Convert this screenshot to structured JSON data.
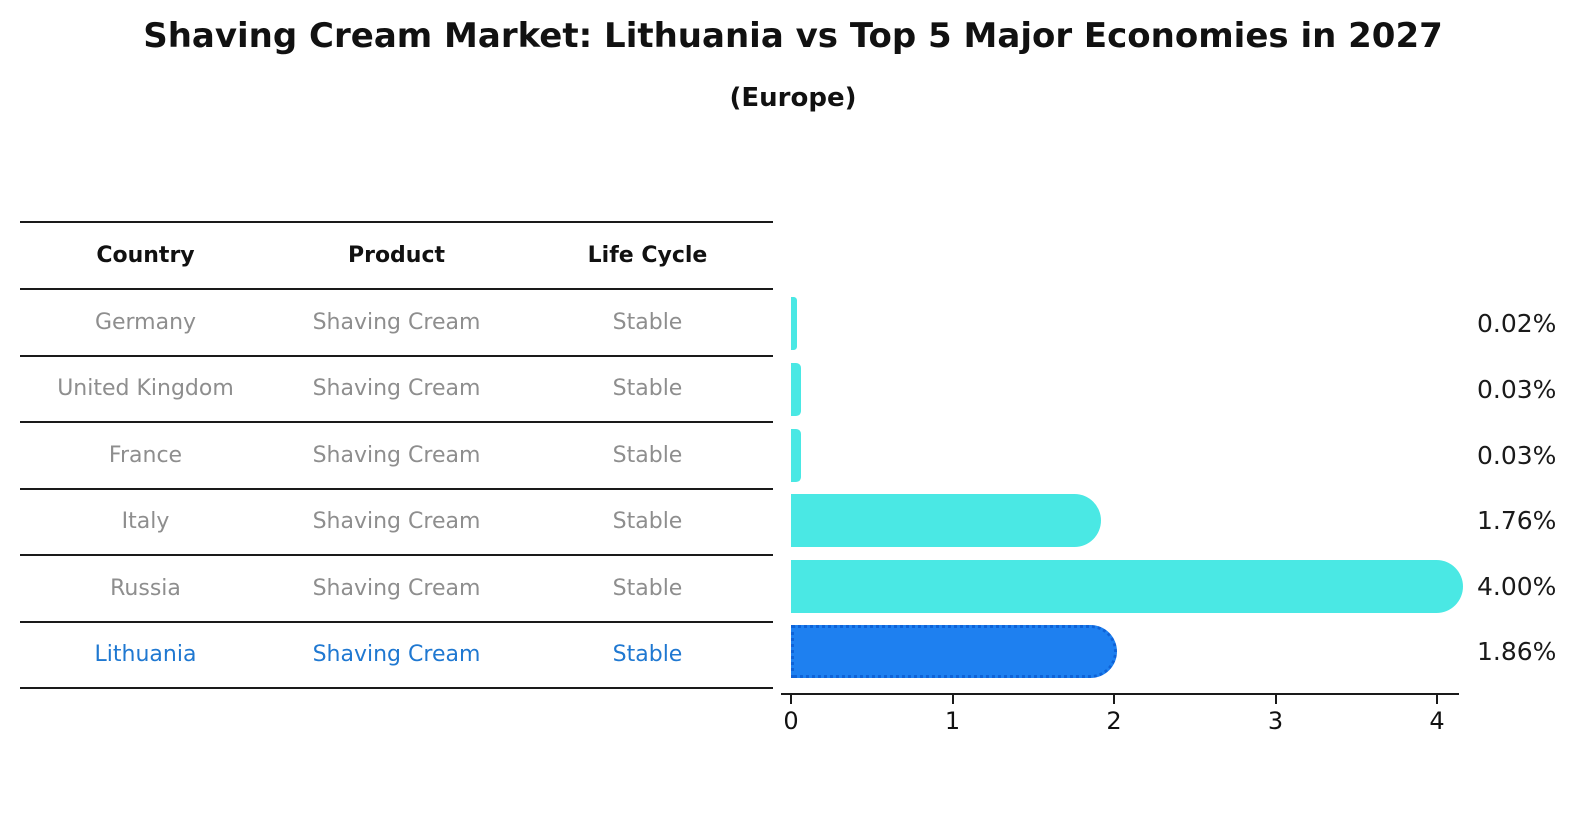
{
  "title": "Shaving Cream Market: Lithuania vs Top 5 Major Economies in 2027",
  "subtitle": "(Europe)",
  "table": {
    "headers": [
      "Country",
      "Product",
      "Life Cycle"
    ],
    "rows": [
      {
        "country": "Germany",
        "product": "Shaving Cream",
        "life_cycle": "Stable",
        "highlight": false
      },
      {
        "country": "United Kingdom",
        "product": "Shaving Cream",
        "life_cycle": "Stable",
        "highlight": false
      },
      {
        "country": "France",
        "product": "Shaving Cream",
        "life_cycle": "Stable",
        "highlight": false
      },
      {
        "country": "Italy",
        "product": "Shaving Cream",
        "life_cycle": "Stable",
        "highlight": false
      },
      {
        "country": "Russia",
        "product": "Shaving Cream",
        "life_cycle": "Stable",
        "highlight": false
      },
      {
        "country": "Lithuania",
        "product": "Shaving Cream",
        "life_cycle": "Stable",
        "highlight": true
      }
    ]
  },
  "chart_data": {
    "type": "bar",
    "orientation": "horizontal",
    "title": "Shaving Cream Market: Lithuania vs Top 5 Major Economies in 2027",
    "subtitle": "(Europe)",
    "categories": [
      "Germany",
      "United Kingdom",
      "France",
      "Italy",
      "Russia",
      "Lithuania"
    ],
    "values": [
      0.02,
      0.03,
      0.03,
      1.76,
      4.0,
      1.86
    ],
    "value_labels": [
      "0.02%",
      "0.03%",
      "0.03%",
      "1.76%",
      "4.00%",
      "1.86%"
    ],
    "xlim": [
      0,
      4.15
    ],
    "x_ticks": [
      "0",
      "1",
      "2",
      "3",
      "4"
    ],
    "grid": false,
    "legend": false,
    "highlight_index": 5,
    "bar_style": "rounded-right-cap, highlighted bar has dotted outline"
  },
  "colors": {
    "background": "#ffffff",
    "title_text": "#111111",
    "table_header_text": "#111111",
    "table_body_text": "#8e8e8e",
    "table_rule": "#1a1a1a",
    "highlight_text": "#1f78d1",
    "bar": "#4AE8E4",
    "highlight_bar": "#1E80F0",
    "highlight_bar_outline": "#0e63d8",
    "axis": "#1a1a1a"
  },
  "layout_note": "static matplotlib-style figure"
}
